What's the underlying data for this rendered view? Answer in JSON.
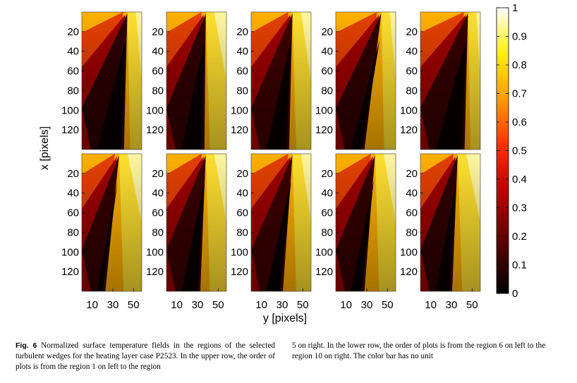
{
  "figure": {
    "y_ticks": [
      "20",
      "40",
      "60",
      "80",
      "100",
      "120"
    ],
    "x_ticks": [
      "10",
      "30",
      "50"
    ],
    "x_axis_label": "y [pixels]",
    "y_axis_label": "x [pixels]",
    "colorbar_ticks": [
      "1",
      "0.9",
      "0.8",
      "0.7",
      "0.6",
      "0.5",
      "0.4",
      "0.3",
      "0.2",
      "0.1",
      "0"
    ],
    "colorbar_range": [
      0,
      1
    ],
    "colormap": [
      "#000000",
      "#5a0000",
      "#b80000",
      "#ff3000",
      "#ff9c00",
      "#ffee10",
      "#ffffff"
    ],
    "panels": [
      {
        "region": 1,
        "apex_y": 44,
        "base_y": 38,
        "darkness": 0.95
      },
      {
        "region": 2,
        "apex_y": 38,
        "base_y": 34,
        "darkness": 0.9
      },
      {
        "region": 3,
        "apex_y": 40,
        "base_y": 34,
        "darkness": 0.75
      },
      {
        "region": 4,
        "apex_y": 44,
        "base_y": 25,
        "darkness": 0.9
      },
      {
        "region": 5,
        "apex_y": 46,
        "base_y": 40,
        "darkness": 0.85
      },
      {
        "region": 6,
        "apex_y": 36,
        "base_y": 20,
        "darkness": 0.85
      },
      {
        "region": 7,
        "apex_y": 38,
        "base_y": 30,
        "darkness": 0.8
      },
      {
        "region": 8,
        "apex_y": 40,
        "base_y": 28,
        "darkness": 0.75
      },
      {
        "region": 9,
        "apex_y": 38,
        "base_y": 25,
        "darkness": 0.85
      },
      {
        "region": 10,
        "apex_y": 36,
        "base_y": 28,
        "darkness": 0.9
      }
    ]
  },
  "caption": {
    "label": "Fig. 6",
    "text_left": "Normalized surface temperature fields in the regions of the selected turbulent wedges for the heating layer case P2523. In the upper row, the order of plots is from the region 1 on left to the region",
    "text_right": "5 on right. In the lower row, the order of plots is from the region 6 on left to the region 10 on right. The color bar has no unit"
  }
}
